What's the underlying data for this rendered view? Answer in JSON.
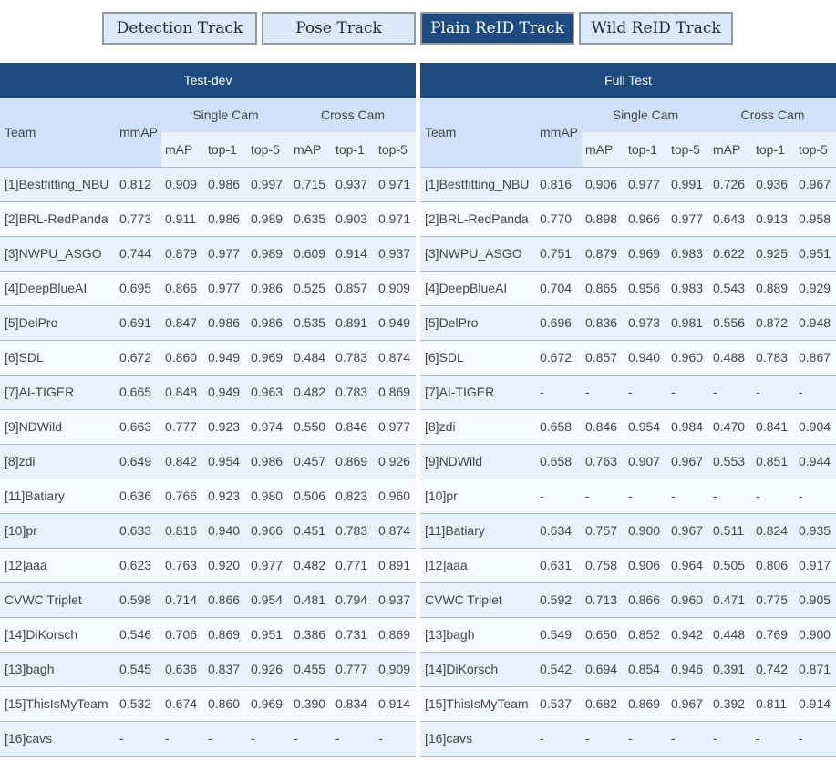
{
  "tabs": [
    {
      "label": "Detection Track",
      "active": false
    },
    {
      "label": "Pose Track",
      "active": false
    },
    {
      "label": "Plain ReID Track",
      "active": true
    },
    {
      "label": "Wild ReID Track",
      "active": false
    }
  ],
  "columns": {
    "team": "Team",
    "mmap": "mmAP",
    "single": "Single Cam",
    "cross": "Cross Cam",
    "sub": [
      "mAP",
      "top-1",
      "top-5",
      "mAP",
      "top-1",
      "top-5"
    ]
  },
  "testdev": {
    "title": "Test-dev",
    "rows": [
      [
        "[1]Bestfitting_NBU",
        "0.812",
        "0.909",
        "0.986",
        "0.997",
        "0.715",
        "0.937",
        "0.971"
      ],
      [
        "[2]BRL-RedPanda",
        "0.773",
        "0.911",
        "0.986",
        "0.989",
        "0.635",
        "0.903",
        "0.971"
      ],
      [
        "[3]NWPU_ASGO",
        "0.744",
        "0.879",
        "0.977",
        "0.989",
        "0.609",
        "0.914",
        "0.937"
      ],
      [
        "[4]DeepBlueAI",
        "0.695",
        "0.866",
        "0.977",
        "0.986",
        "0.525",
        "0.857",
        "0.909"
      ],
      [
        "[5]DelPro",
        "0.691",
        "0.847",
        "0.986",
        "0.986",
        "0.535",
        "0.891",
        "0.949"
      ],
      [
        "[6]SDL",
        "0.672",
        "0.860",
        "0.949",
        "0.969",
        "0.484",
        "0.783",
        "0.874"
      ],
      [
        "[7]AI-TIGER",
        "0.665",
        "0.848",
        "0.949",
        "0.963",
        "0.482",
        "0.783",
        "0.869"
      ],
      [
        "[9]NDWild",
        "0.663",
        "0.777",
        "0.923",
        "0.974",
        "0.550",
        "0.846",
        "0.977"
      ],
      [
        "[8]zdi",
        "0.649",
        "0.842",
        "0.954",
        "0.986",
        "0.457",
        "0.869",
        "0.926"
      ],
      [
        "[11]Batiary",
        "0.636",
        "0.766",
        "0.923",
        "0.980",
        "0.506",
        "0.823",
        "0.960"
      ],
      [
        "[10]pr",
        "0.633",
        "0.816",
        "0.940",
        "0.966",
        "0.451",
        "0.783",
        "0.874"
      ],
      [
        "[12]aaa",
        "0.623",
        "0.763",
        "0.920",
        "0.977",
        "0.482",
        "0.771",
        "0.891"
      ],
      [
        "CVWC Triplet",
        "0.598",
        "0.714",
        "0.866",
        "0.954",
        "0.481",
        "0.794",
        "0.937"
      ],
      [
        "[14]DiKorsch",
        "0.546",
        "0.706",
        "0.869",
        "0.951",
        "0.386",
        "0.731",
        "0.869"
      ],
      [
        "[13]bagh",
        "0.545",
        "0.636",
        "0.837",
        "0.926",
        "0.455",
        "0.777",
        "0.909"
      ],
      [
        "[15]ThisIsMyTeam",
        "0.532",
        "0.674",
        "0.860",
        "0.969",
        "0.390",
        "0.834",
        "0.914"
      ],
      [
        "[16]cavs",
        "-",
        "-",
        "-",
        "-",
        "-",
        "-",
        "-"
      ]
    ]
  },
  "fulltest": {
    "title": "Full Test",
    "rows": [
      [
        "[1]Bestfitting_NBU",
        "0.816",
        "0.906",
        "0.977",
        "0.991",
        "0.726",
        "0.936",
        "0.967"
      ],
      [
        "[2]BRL-RedPanda",
        "0.770",
        "0.898",
        "0.966",
        "0.977",
        "0.643",
        "0.913",
        "0.958"
      ],
      [
        "[3]NWPU_ASGO",
        "0.751",
        "0.879",
        "0.969",
        "0.983",
        "0.622",
        "0.925",
        "0.951"
      ],
      [
        "[4]DeepBlueAI",
        "0.704",
        "0.865",
        "0.956",
        "0.983",
        "0.543",
        "0.889",
        "0.929"
      ],
      [
        "[5]DelPro",
        "0.696",
        "0.836",
        "0.973",
        "0.981",
        "0.556",
        "0.872",
        "0.948"
      ],
      [
        "[6]SDL",
        "0.672",
        "0.857",
        "0.940",
        "0.960",
        "0.488",
        "0.783",
        "0.867"
      ],
      [
        "[7]AI-TIGER",
        "-",
        "-",
        "-",
        "-",
        "-",
        "-",
        "-"
      ],
      [
        "[8]zdi",
        "0.658",
        "0.846",
        "0.954",
        "0.984",
        "0.470",
        "0.841",
        "0.904"
      ],
      [
        "[9]NDWild",
        "0.658",
        "0.763",
        "0.907",
        "0.967",
        "0.553",
        "0.851",
        "0.944"
      ],
      [
        "[10]pr",
        "-",
        "-",
        "-",
        "-",
        "-",
        "-",
        "-"
      ],
      [
        "[11]Batiary",
        "0.634",
        "0.757",
        "0.900",
        "0.967",
        "0.511",
        "0.824",
        "0.935"
      ],
      [
        "[12]aaa",
        "0.631",
        "0.758",
        "0.906",
        "0.964",
        "0.505",
        "0.806",
        "0.917"
      ],
      [
        "CVWC Triplet",
        "0.592",
        "0.713",
        "0.866",
        "0.960",
        "0.471",
        "0.775",
        "0.905"
      ],
      [
        "[13]bagh",
        "0.549",
        "0.650",
        "0.852",
        "0.942",
        "0.448",
        "0.769",
        "0.900"
      ],
      [
        "[14]DiKorsch",
        "0.542",
        "0.694",
        "0.854",
        "0.946",
        "0.391",
        "0.742",
        "0.871"
      ],
      [
        "[15]ThisIsMyTeam",
        "0.537",
        "0.682",
        "0.869",
        "0.967",
        "0.392",
        "0.811",
        "0.914"
      ],
      [
        "[16]cavs",
        "-",
        "-",
        "-",
        "-",
        "-",
        "-",
        "-"
      ]
    ]
  }
}
